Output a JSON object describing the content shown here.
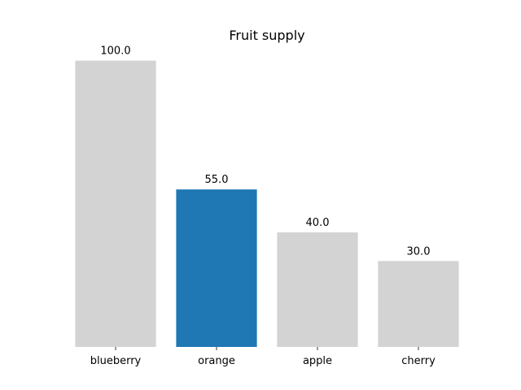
{
  "chart_data": {
    "type": "bar",
    "title": "Fruit supply",
    "categories": [
      "blueberry",
      "orange",
      "apple",
      "cherry"
    ],
    "values": [
      100.0,
      55.0,
      40.0,
      30.0
    ],
    "value_labels": [
      "100.0",
      "55.0",
      "40.0",
      "30.0"
    ],
    "xlabel": "",
    "ylabel": "",
    "ylim": [
      0,
      100
    ],
    "grid": false,
    "y_axis_visible": false,
    "highlight_category": "orange",
    "colors": {
      "default_bar": "#d3d3d3",
      "highlight_bar": "#1f77b4",
      "text": "#000000"
    }
  }
}
